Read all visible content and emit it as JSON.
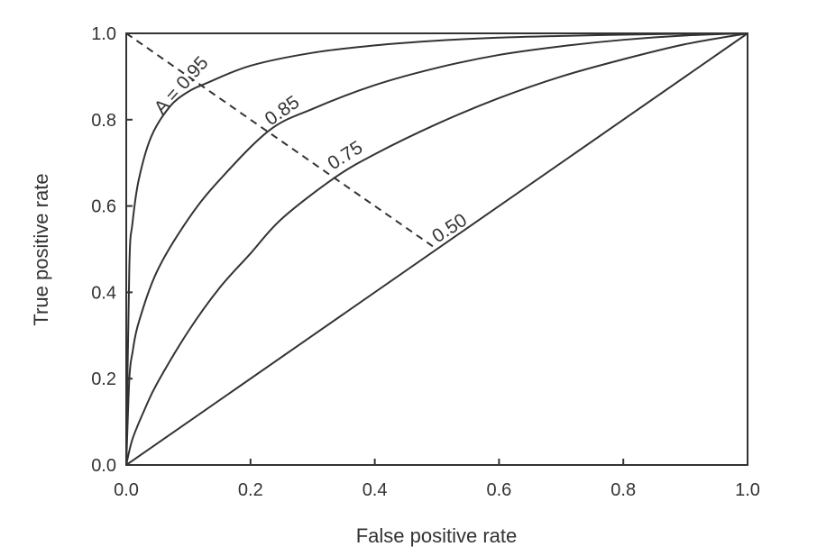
{
  "chart_data": {
    "type": "line",
    "title": "",
    "xlabel": "False positive rate",
    "ylabel": "True positive rate",
    "xlim": [
      0.0,
      1.0
    ],
    "ylim": [
      0.0,
      1.0
    ],
    "grid": false,
    "xticks": [
      "0.0",
      "0.2",
      "0.4",
      "0.6",
      "0.8",
      "1.0"
    ],
    "yticks": [
      "0.0",
      "0.2",
      "0.4",
      "0.6",
      "0.8",
      "1.0"
    ],
    "series": [
      {
        "name": "0.95",
        "label_text": "A = 0.95",
        "x": [
          0.0,
          0.005,
          0.01,
          0.02,
          0.04,
          0.07,
          0.1,
          0.13,
          0.2,
          0.3,
          0.4,
          0.5,
          0.6,
          0.7,
          0.8,
          0.9,
          1.0
        ],
        "y": [
          0.0,
          0.46,
          0.56,
          0.66,
          0.76,
          0.83,
          0.865,
          0.885,
          0.925,
          0.955,
          0.972,
          0.983,
          0.99,
          0.994,
          0.997,
          0.999,
          1.0
        ]
      },
      {
        "name": "0.85",
        "x": [
          0.0,
          0.005,
          0.01,
          0.02,
          0.05,
          0.1,
          0.15,
          0.23,
          0.3,
          0.4,
          0.5,
          0.6,
          0.7,
          0.8,
          0.9,
          1.0
        ],
        "y": [
          0.0,
          0.2,
          0.26,
          0.33,
          0.45,
          0.57,
          0.66,
          0.775,
          0.825,
          0.88,
          0.92,
          0.95,
          0.97,
          0.985,
          0.995,
          1.0
        ]
      },
      {
        "name": "0.75",
        "x": [
          0.0,
          0.01,
          0.03,
          0.05,
          0.1,
          0.15,
          0.2,
          0.25,
          0.335,
          0.4,
          0.5,
          0.6,
          0.7,
          0.8,
          0.9,
          1.0
        ],
        "y": [
          0.0,
          0.06,
          0.13,
          0.19,
          0.31,
          0.41,
          0.49,
          0.57,
          0.665,
          0.72,
          0.79,
          0.85,
          0.9,
          0.94,
          0.975,
          1.0
        ]
      },
      {
        "name": "0.50",
        "x": [
          0.0,
          1.0
        ],
        "y": [
          0.0,
          1.0
        ]
      }
    ],
    "reference_line": {
      "style": "dashed",
      "x": [
        0.0,
        0.5
      ],
      "y": [
        1.0,
        0.5
      ]
    },
    "colors": {
      "curve": "#333333",
      "axis": "#333333",
      "text": "#333333",
      "background": "#ffffff"
    }
  }
}
